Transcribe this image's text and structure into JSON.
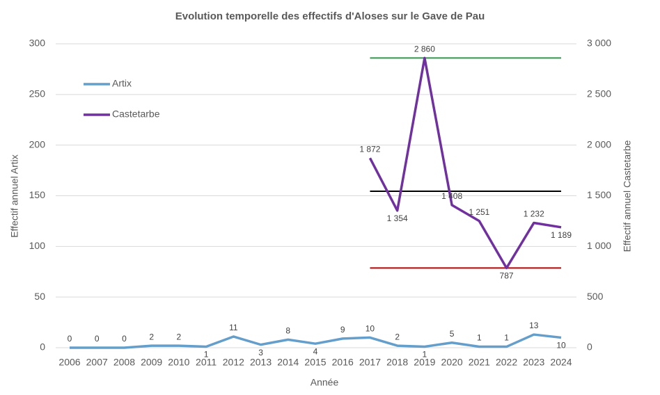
{
  "chart_data": {
    "type": "line",
    "title": "Evolution temporelle des effectifs d'Aloses sur le Gave de Pau",
    "x_label": "Année",
    "y_label": "Effectif annuel Artix",
    "y2_label": "Effectif annuel Castetarbe",
    "categories": [
      "2006",
      "2007",
      "2008",
      "2009",
      "2010",
      "2011",
      "2012",
      "2013",
      "2014",
      "2015",
      "2016",
      "2017",
      "2018",
      "2019",
      "2020",
      "2021",
      "2022",
      "2023",
      "2024"
    ],
    "series": [
      {
        "name": "Artix",
        "color": "#649ecb",
        "values": [
          0,
          0,
          0,
          2,
          2,
          1,
          11,
          3,
          8,
          4,
          9,
          10,
          2,
          1,
          5,
          1,
          1,
          13,
          10
        ]
      },
      {
        "name": "Castetarbe",
        "color": "#7030a0",
        "axis": "y2",
        "values": [
          null,
          null,
          null,
          null,
          null,
          null,
          null,
          null,
          null,
          null,
          null,
          1872,
          1354,
          2860,
          1408,
          1251,
          787,
          1232,
          1189
        ],
        "value_labels": [
          null,
          null,
          null,
          null,
          null,
          null,
          null,
          null,
          null,
          null,
          null,
          "1 872",
          "1 354",
          "2 860",
          "1 408",
          "1 251",
          "787",
          "1 232",
          "1 189"
        ]
      }
    ],
    "reference_lines": [
      {
        "value": 2860,
        "color": "#2e9a4a",
        "axis": "y2"
      },
      {
        "value": 1545,
        "color": "#000000",
        "axis": "y2"
      },
      {
        "value": 787,
        "color": "#c00000",
        "axis": "y2"
      }
    ],
    "ylim": [
      0,
      300
    ],
    "yticks": [
      0,
      50,
      100,
      150,
      200,
      250,
      300
    ],
    "y2lim": [
      0,
      3000
    ],
    "y2ticks": [
      {
        "value": 0,
        "label": "0"
      },
      {
        "value": 500,
        "label": "500"
      },
      {
        "value": 1000,
        "label": "1 000"
      },
      {
        "value": 1500,
        "label": "1 500"
      },
      {
        "value": 2000,
        "label": "2 000"
      },
      {
        "value": 2500,
        "label": "2 500"
      },
      {
        "value": 3000,
        "label": "3 000"
      }
    ],
    "grid": true,
    "legend": "upper left"
  }
}
